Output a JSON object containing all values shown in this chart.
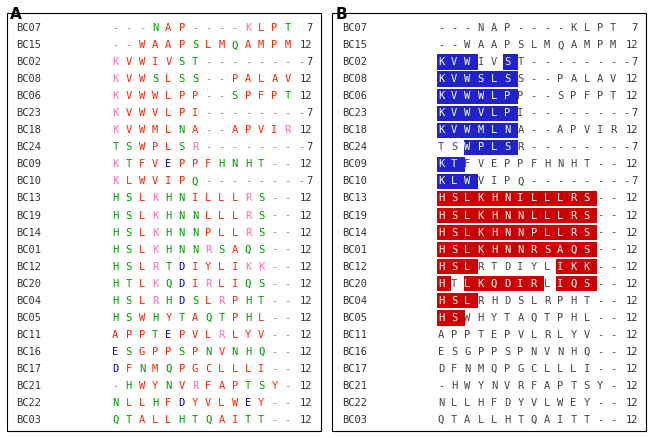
{
  "sequences": [
    {
      "name": "BC07",
      "seq": "---NAP----KLPT",
      "count": "7"
    },
    {
      "name": "BC15",
      "seq": "--WAAPSLMQAMPM",
      "count": "12"
    },
    {
      "name": "BC02",
      "seq": "KVWIVST--------",
      "count": "7"
    },
    {
      "name": "BC08",
      "seq": "KVWSLSS--PALAV",
      "count": "12"
    },
    {
      "name": "BC06",
      "seq": "KVWWLPP--SPFPT",
      "count": "12"
    },
    {
      "name": "BC23",
      "seq": "KVWVLPI--------",
      "count": "7"
    },
    {
      "name": "BC18",
      "seq": "KVWMLNA--APVIR",
      "count": "12"
    },
    {
      "name": "BC24",
      "seq": "TSWPLSR--------",
      "count": "7"
    },
    {
      "name": "BC09",
      "seq": "KTFVEPPFHNHT--",
      "count": "12"
    },
    {
      "name": "BC10",
      "seq": "KLWVIPQ--------",
      "count": "7"
    },
    {
      "name": "BC13",
      "seq": "HSLKHNILLLRS--",
      "count": "12"
    },
    {
      "name": "BC19",
      "seq": "HSLKHNNLLLRS--",
      "count": "12"
    },
    {
      "name": "BC14",
      "seq": "HSLKHNNPLLRS--",
      "count": "12"
    },
    {
      "name": "BC01",
      "seq": "HSLKHNNRSAQS--",
      "count": "12"
    },
    {
      "name": "BC12",
      "seq": "HSLRTDIYLIKK--",
      "count": "12"
    },
    {
      "name": "BC20",
      "seq": "HTLKQDIRLIQS--",
      "count": "12"
    },
    {
      "name": "BC04",
      "seq": "HSLRHDSLRPHT--",
      "count": "12"
    },
    {
      "name": "BC05",
      "seq": "HSWHYTAQTPHL--",
      "count": "12"
    },
    {
      "name": "BC11",
      "seq": "APPTEPVLRLYV--",
      "count": "12"
    },
    {
      "name": "BC16",
      "seq": "ESGPPSPNVNHQ--",
      "count": "12"
    },
    {
      "name": "BC17",
      "seq": "DFNMQPGCLLLI--",
      "count": "12"
    },
    {
      "name": "BC21",
      "seq": "-HWYNVRFAPTSY-",
      "count": "12"
    },
    {
      "name": "BC22",
      "seq": "NLLHFDYVLWEY--",
      "count": "12"
    },
    {
      "name": "BC03",
      "seq": "QTALLHTQAITT--",
      "count": "12"
    }
  ],
  "blue_highlights": {
    "BC02": [
      0,
      1,
      2,
      5
    ],
    "BC08": [
      0,
      1,
      2,
      3,
      4,
      5
    ],
    "BC06": [
      0,
      1,
      2,
      3,
      4,
      5
    ],
    "BC23": [
      0,
      1,
      2,
      3,
      4,
      5
    ],
    "BC18": [
      0,
      1,
      2,
      3,
      4,
      5
    ],
    "BC24": [
      2,
      3,
      4,
      5
    ],
    "BC09": [
      0,
      1
    ],
    "BC10": [
      0,
      1,
      2
    ]
  },
  "red_highlights": {
    "BC13": [
      0,
      1,
      2,
      3,
      4,
      5,
      6,
      7,
      8,
      9,
      10,
      11
    ],
    "BC19": [
      0,
      1,
      2,
      3,
      4,
      5,
      6,
      7,
      8,
      9,
      10,
      11
    ],
    "BC14": [
      0,
      1,
      2,
      3,
      4,
      5,
      6,
      7,
      8,
      9,
      10,
      11
    ],
    "BC01": [
      0,
      1,
      2,
      3,
      4,
      5,
      6,
      7,
      8,
      9,
      10,
      11
    ],
    "BC12": [
      0,
      1,
      2,
      9,
      10,
      11
    ],
    "BC20": [
      0,
      2,
      3,
      4,
      5,
      6,
      7,
      9,
      10,
      11
    ],
    "BC04": [
      0,
      1,
      2
    ],
    "BC05": [
      0,
      1
    ]
  },
  "panel_A_label": "A",
  "panel_B_label": "B",
  "font_size": 7.5,
  "name_color": "#333333",
  "gap_color": "#888888",
  "bg_color": "#FFFFFF",
  "blue_bg": "#2222CC",
  "red_bg": "#CC0000"
}
